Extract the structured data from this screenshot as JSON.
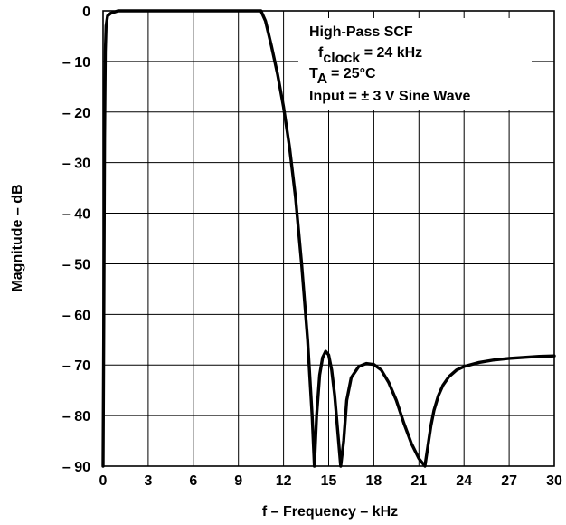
{
  "chart_data": {
    "type": "line",
    "xlabel": "f – Frequency – kHz",
    "ylabel": "Magnitude – dB",
    "xlim": [
      0,
      30
    ],
    "ylim": [
      -90,
      0
    ],
    "x_ticks": [
      0,
      3,
      6,
      9,
      12,
      15,
      18,
      21,
      24,
      27,
      30
    ],
    "x_tick_labels": [
      "0",
      "3",
      "6",
      "9",
      "12",
      "15",
      "18",
      "21",
      "24",
      "27",
      "30"
    ],
    "y_ticks": [
      0,
      -10,
      -20,
      -30,
      -40,
      -50,
      -60,
      -70,
      -80,
      -90
    ],
    "y_tick_labels": [
      "0",
      "– 10",
      "– 20",
      "– 30",
      "– 40",
      "– 50",
      "– 60",
      "– 70",
      "– 80",
      "– 90"
    ],
    "grid": true,
    "annotation": {
      "line1": "High-Pass SCF",
      "line2_main": "f",
      "line2_sub": "clock",
      "line2_rest": " = 24 kHz",
      "line3_main": "T",
      "line3_sub": "A",
      "line3_rest": " = 25°C",
      "line4": "Input = ± 3 V Sine Wave"
    },
    "series": [
      {
        "x": [
          0.0,
          0.05,
          0.1,
          0.15,
          0.2,
          0.3,
          0.5,
          1.0,
          3.0,
          6.0,
          9.0,
          10.5,
          10.8,
          11.2,
          11.6,
          12.0,
          12.4,
          12.8,
          13.2,
          13.6,
          13.9,
          14.05,
          14.2,
          14.4,
          14.6,
          14.8,
          15.0,
          15.2,
          15.4,
          15.6,
          15.8,
          16.0,
          16.2,
          16.5,
          17.0,
          17.5,
          18.0,
          18.5,
          19.0,
          19.5,
          20.0,
          20.5,
          21.0,
          21.4,
          21.6,
          21.8,
          22.0,
          22.3,
          22.6,
          23.0,
          23.5,
          24.0,
          25.0,
          26.0,
          27.0,
          28.0,
          29.0,
          30.0
        ],
        "y": [
          -90,
          -60,
          -25,
          -8,
          -3,
          -1,
          -0.5,
          0,
          0,
          0,
          0,
          0,
          -2,
          -7,
          -12.5,
          -19,
          -27,
          -37,
          -50,
          -65,
          -80,
          -90,
          -80,
          -72,
          -68.5,
          -67.3,
          -68,
          -71,
          -76,
          -83,
          -90,
          -85,
          -77,
          -72.5,
          -70.3,
          -69.7,
          -69.9,
          -71,
          -73.5,
          -77,
          -81.5,
          -85.5,
          -88.5,
          -90,
          -86,
          -82,
          -79,
          -76,
          -74,
          -72.3,
          -71,
          -70.3,
          -69.5,
          -69,
          -68.7,
          -68.5,
          -68.3,
          -68.2
        ]
      }
    ]
  }
}
